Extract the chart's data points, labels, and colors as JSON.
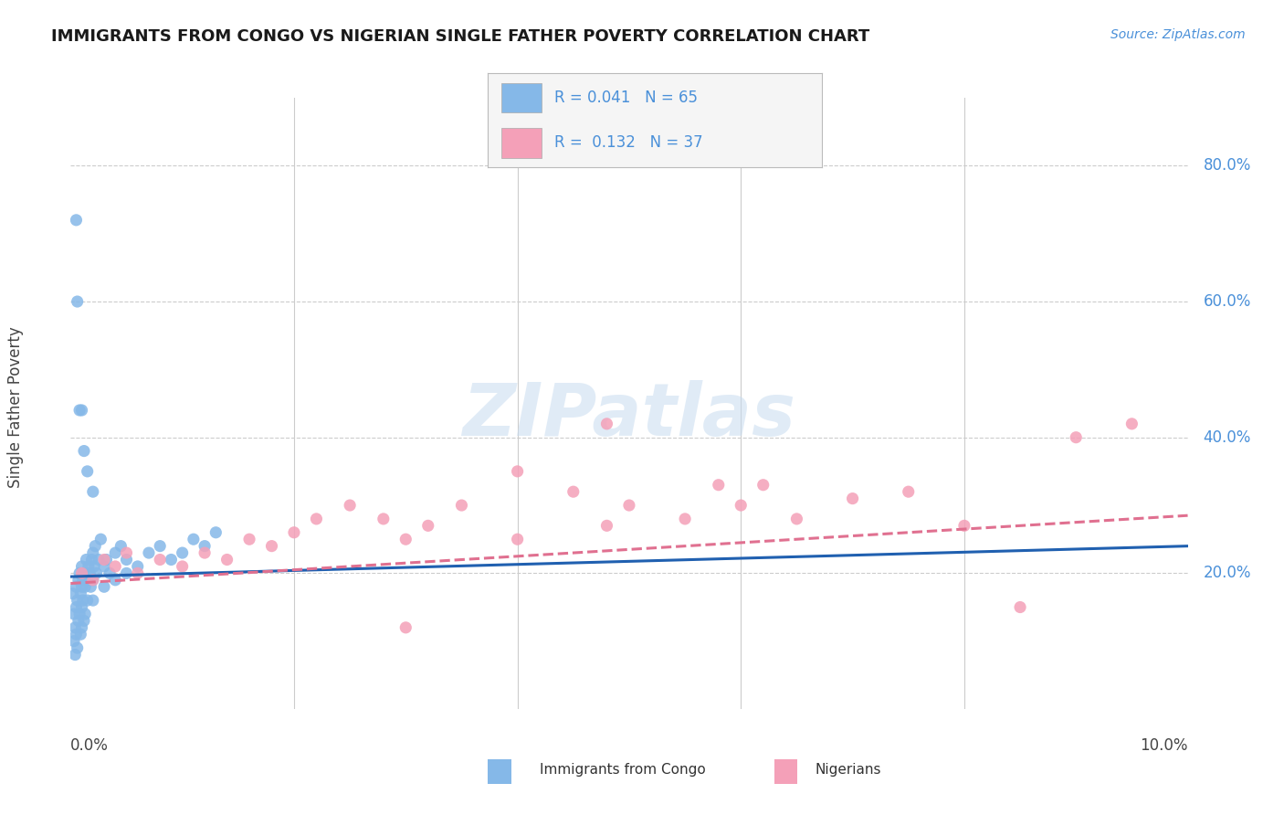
{
  "title": "IMMIGRANTS FROM CONGO VS NIGERIAN SINGLE FATHER POVERTY CORRELATION CHART",
  "source": "Source: ZipAtlas.com",
  "ylabel": "Single Father Poverty",
  "congo_color": "#85b8e8",
  "nigerian_color": "#f4a0b8",
  "congo_line_color": "#2060b0",
  "nigerian_line_color": "#e07090",
  "background_color": "#ffffff",
  "grid_color": "#cccccc",
  "xlim": [
    0.0,
    0.1
  ],
  "ylim": [
    0.0,
    0.9
  ],
  "congo_scatter_x": [
    0.0002,
    0.0003,
    0.0003,
    0.0004,
    0.0004,
    0.0005,
    0.0005,
    0.0005,
    0.0006,
    0.0006,
    0.0007,
    0.0007,
    0.0008,
    0.0008,
    0.0009,
    0.0009,
    0.001,
    0.001,
    0.001,
    0.001,
    0.0011,
    0.0011,
    0.0012,
    0.0012,
    0.0013,
    0.0013,
    0.0014,
    0.0015,
    0.0015,
    0.0016,
    0.0017,
    0.0018,
    0.0019,
    0.002,
    0.002,
    0.002,
    0.0021,
    0.0022,
    0.0023,
    0.0025,
    0.0027,
    0.003,
    0.003,
    0.0032,
    0.0035,
    0.004,
    0.004,
    0.0045,
    0.005,
    0.005,
    0.006,
    0.007,
    0.008,
    0.009,
    0.01,
    0.011,
    0.012,
    0.013,
    0.0005,
    0.0006,
    0.0008,
    0.001,
    0.0012,
    0.0015,
    0.002
  ],
  "congo_scatter_y": [
    0.17,
    0.14,
    0.1,
    0.12,
    0.08,
    0.18,
    0.15,
    0.11,
    0.16,
    0.09,
    0.19,
    0.13,
    0.2,
    0.14,
    0.17,
    0.11,
    0.21,
    0.18,
    0.15,
    0.12,
    0.19,
    0.16,
    0.2,
    0.13,
    0.18,
    0.14,
    0.22,
    0.19,
    0.16,
    0.21,
    0.2,
    0.18,
    0.22,
    0.23,
    0.19,
    0.16,
    0.21,
    0.24,
    0.2,
    0.22,
    0.25,
    0.21,
    0.18,
    0.22,
    0.2,
    0.23,
    0.19,
    0.24,
    0.22,
    0.2,
    0.21,
    0.23,
    0.24,
    0.22,
    0.23,
    0.25,
    0.24,
    0.26,
    0.72,
    0.6,
    0.44,
    0.44,
    0.38,
    0.35,
    0.32
  ],
  "nigerian_scatter_x": [
    0.001,
    0.002,
    0.003,
    0.004,
    0.005,
    0.006,
    0.008,
    0.01,
    0.012,
    0.014,
    0.016,
    0.018,
    0.02,
    0.022,
    0.025,
    0.028,
    0.03,
    0.032,
    0.035,
    0.04,
    0.04,
    0.045,
    0.048,
    0.05,
    0.055,
    0.058,
    0.06,
    0.065,
    0.07,
    0.075,
    0.08,
    0.085,
    0.09,
    0.095,
    0.048,
    0.062,
    0.03
  ],
  "nigerian_scatter_y": [
    0.2,
    0.19,
    0.22,
    0.21,
    0.23,
    0.2,
    0.22,
    0.21,
    0.23,
    0.22,
    0.25,
    0.24,
    0.26,
    0.28,
    0.3,
    0.28,
    0.25,
    0.27,
    0.3,
    0.35,
    0.25,
    0.32,
    0.27,
    0.3,
    0.28,
    0.33,
    0.3,
    0.28,
    0.31,
    0.32,
    0.27,
    0.15,
    0.4,
    0.42,
    0.42,
    0.33,
    0.12
  ],
  "congo_trend_x0": 0.0,
  "congo_trend_y0": 0.195,
  "congo_trend_x1": 0.1,
  "congo_trend_y1": 0.24,
  "nigerian_trend_x0": 0.0,
  "nigerian_trend_y0": 0.185,
  "nigerian_trend_x1": 0.1,
  "nigerian_trend_y1": 0.285
}
